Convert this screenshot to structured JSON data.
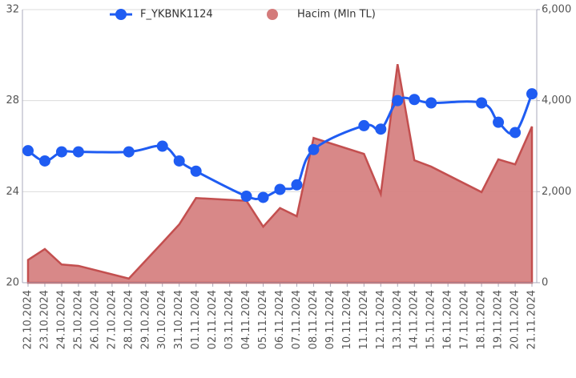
{
  "chart_data": {
    "type": "line",
    "categories": [
      "22.10.2024",
      "23.10.2024",
      "24.10.2024",
      "25.10.2024",
      "26.10.2024",
      "27.10.2024",
      "28.10.2024",
      "29.10.2024",
      "30.10.2024",
      "31.10.2024",
      "01.11.2024",
      "02.11.2024",
      "03.11.2024",
      "04.11.2024",
      "05.11.2024",
      "06.11.2024",
      "07.11.2024",
      "08.11.2024",
      "09.11.2024",
      "10.11.2024",
      "11.11.2024",
      "12.11.2024",
      "13.11.2024",
      "14.11.2024",
      "15.11.2024",
      "16.11.2024",
      "17.11.2024",
      "18.11.2024",
      "19.11.2024",
      "20.11.2024",
      "21.11.2024"
    ],
    "ylim": [
      20,
      32
    ],
    "yticks": [
      20,
      24,
      28,
      32
    ],
    "y2lim": [
      0,
      6000
    ],
    "y2ticks": [
      0,
      {
        "value": 2000,
        "label": "2,000"
      },
      {
        "value": 4000,
        "label": "4,000"
      },
      {
        "value": 6000,
        "label": "6,000"
      }
    ],
    "grid": true,
    "legend": "top",
    "series": [
      {
        "name": "F_YKBNK1124",
        "type": "line",
        "color": "#1f5cf2",
        "x": [
          "22.10.2024",
          "23.10.2024",
          "24.10.2024",
          "25.10.2024",
          "28.10.2024",
          "30.10.2024",
          "31.10.2024",
          "01.11.2024",
          "04.11.2024",
          "05.11.2024",
          "06.11.2024",
          "07.11.2024",
          "08.11.2024",
          "11.11.2024",
          "12.11.2024",
          "13.11.2024",
          "14.11.2024",
          "15.11.2024",
          "18.11.2024",
          "19.11.2024",
          "20.11.2024",
          "21.11.2024"
        ],
        "values": [
          25.8,
          25.35,
          25.75,
          25.75,
          25.75,
          26.0,
          25.35,
          24.9,
          23.8,
          23.75,
          24.1,
          24.3,
          25.85,
          26.9,
          26.75,
          28.0,
          28.05,
          27.9,
          27.9,
          27.05,
          26.6,
          28.3
        ]
      },
      {
        "name": "Hacim (Mln TL)",
        "type": "area",
        "axis": "y2",
        "color": "#d47b7b",
        "x": [
          "22.10.2024",
          "23.10.2024",
          "24.10.2024",
          "25.10.2024",
          "28.10.2024",
          "30.10.2024",
          "31.10.2024",
          "01.11.2024",
          "04.11.2024",
          "05.11.2024",
          "06.11.2024",
          "07.11.2024",
          "08.11.2024",
          "11.11.2024",
          "12.11.2024",
          "13.11.2024",
          "14.11.2024",
          "15.11.2024",
          "18.11.2024",
          "19.11.2024",
          "20.11.2024",
          "21.11.2024"
        ],
        "values": [
          500,
          740,
          400,
          370,
          90,
          880,
          1280,
          1860,
          1800,
          1230,
          1640,
          1460,
          3180,
          2830,
          1950,
          4800,
          2690,
          2550,
          1990,
          2710,
          2600,
          3430
        ]
      }
    ]
  }
}
